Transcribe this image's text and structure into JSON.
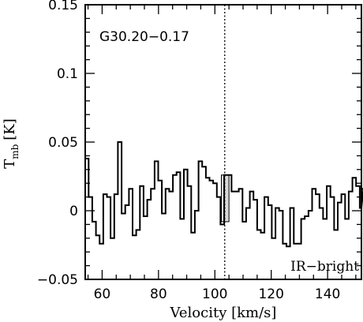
{
  "chart_data": {
    "type": "line",
    "source_label": "G30.20−0.17",
    "corner_label": "IR−bright",
    "xlabel": "Velocity [km/s]",
    "ylabel_main": "T",
    "ylabel_sub": "mb",
    "ylabel_unit": "[K]",
    "xlim": [
      54,
      152
    ],
    "ylim": [
      -0.05,
      0.15
    ],
    "x_ticks": [
      60,
      80,
      100,
      120,
      140
    ],
    "x_tick_labels": [
      "60",
      "80",
      "100",
      "120",
      "140"
    ],
    "y_ticks": [
      -0.05,
      0,
      0.05,
      0.1,
      0.15
    ],
    "y_tick_labels": [
      "−0.05",
      "0",
      "0.05",
      "0.1",
      "0.15"
    ],
    "marker_velocity": 103.5,
    "highlight_channel": [
      102.3,
      105.0
    ],
    "grid": false,
    "series": [
      {
        "style": "histogram",
        "bin_width": 1.3,
        "x_start": 53.9,
        "values": [
          0.038,
          0.01,
          -0.008,
          -0.018,
          -0.024,
          0.012,
          0.01,
          -0.02,
          0.012,
          0.05,
          -0.002,
          0.004,
          0.016,
          -0.018,
          -0.014,
          0.018,
          -0.004,
          0.008,
          0.016,
          0.036,
          0.022,
          -0.002,
          0.016,
          0.014,
          0.026,
          0.028,
          -0.006,
          0.03,
          0.018,
          -0.016,
          0.0,
          0.036,
          0.032,
          0.024,
          0.022,
          0.02,
          0.01,
          -0.01,
          0.026,
          0.026,
          0.014,
          0.014,
          0.016,
          -0.008,
          0.002,
          0.014,
          0.008,
          -0.014,
          -0.016,
          0.01,
          0.004,
          -0.02,
          0.002,
          0.0,
          -0.024,
          -0.026,
          0.002,
          -0.024,
          -0.024,
          -0.006,
          -0.004,
          0.0,
          0.016,
          0.012,
          0.002,
          -0.006,
          0.018,
          0.01,
          -0.014,
          0.006,
          0.012,
          -0.006,
          0.014,
          0.024,
          0.018,
          0.002,
          0.016
        ]
      }
    ]
  }
}
